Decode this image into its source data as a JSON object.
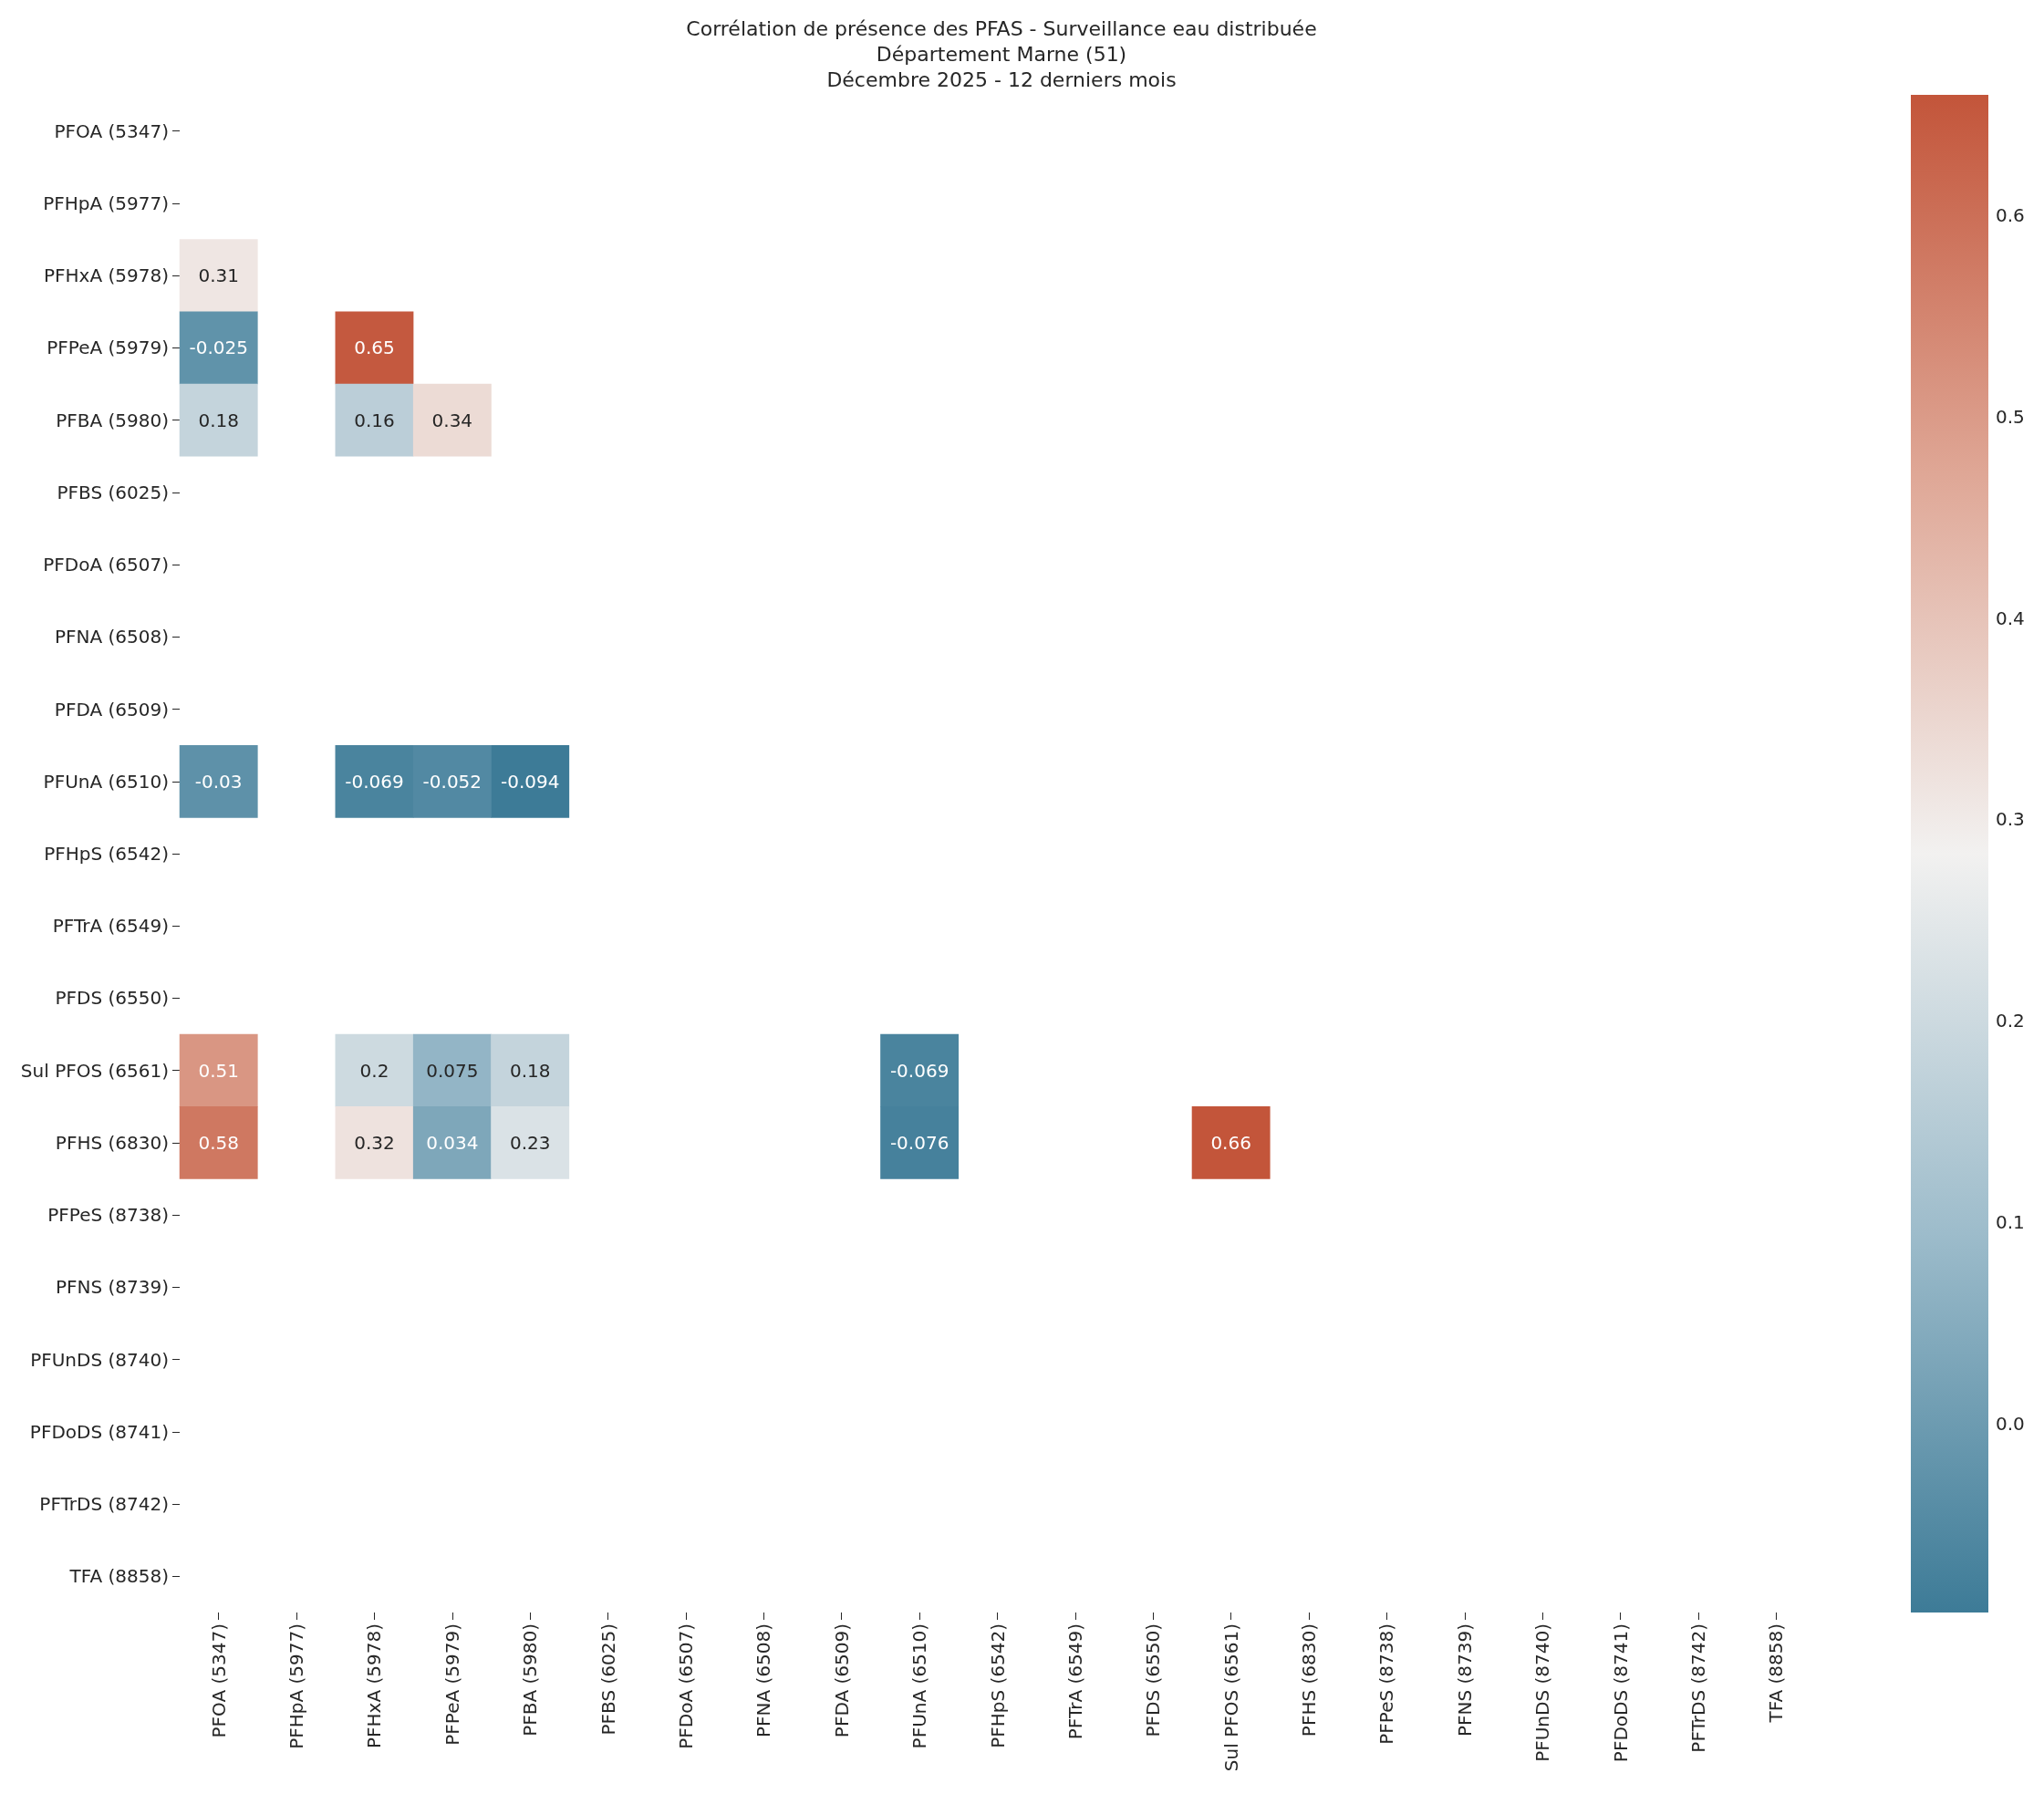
{
  "chart_data": {
    "type": "heatmap",
    "title": "Corrélation de présence des PFAS - Surveillance eau distribuée\nDépartement Marne (51)\nDécembre 2025 - 12 derniers mois",
    "categories": [
      "PFOA (5347)",
      "PFHpA (5977)",
      "PFHxA (5978)",
      "PFPeA (5979)",
      "PFBA (5980)",
      "PFBS (6025)",
      "PFDoA (6507)",
      "PFNA (6508)",
      "PFDA (6509)",
      "PFUnA (6510)",
      "PFHpS (6542)",
      "PFTrA (6549)",
      "PFDS (6550)",
      "Sul PFOS (6561)",
      "PFHS (6830)",
      "PFPeS (8738)",
      "PFNS (8739)",
      "PFUnDS (8740)",
      "PFDoDS (8741)",
      "PFTrDS (8742)",
      "TFA (8858)"
    ],
    "y_categories": [
      "PFOA (5347)",
      "PFHpA (5977)",
      "PFHxA (5978)",
      "PFPeA (5979)",
      "PFBA (5980)",
      "PFBS (6025)",
      "PFDoA (6507)",
      "PFNA (6508)",
      "PFDA (6509)",
      "PFUnA (6510)",
      "PFHpS (6542)",
      "PFTrA (6549)",
      "PFDS (6550)",
      "Sul PFOS (6561)",
      "PFHS (6830)",
      "PFPeS (8738)",
      "PFNS (8739)",
      "PFUnDS (8740)",
      "PFDoDS (8741)",
      "PFTrDS (8742)",
      "TFA (8858)"
    ],
    "cells": [
      [
        null,
        null,
        null,
        null,
        null,
        null,
        null,
        null,
        null,
        null,
        null,
        null,
        null,
        null,
        null,
        null,
        null,
        null,
        null,
        null,
        null
      ],
      [
        null,
        null,
        null,
        null,
        null,
        null,
        null,
        null,
        null,
        null,
        null,
        null,
        null,
        null,
        null,
        null,
        null,
        null,
        null,
        null,
        null
      ],
      [
        0.31,
        null,
        null,
        null,
        null,
        null,
        null,
        null,
        null,
        null,
        null,
        null,
        null,
        null,
        null,
        null,
        null,
        null,
        null,
        null,
        null
      ],
      [
        -0.025,
        null,
        0.65,
        null,
        null,
        null,
        null,
        null,
        null,
        null,
        null,
        null,
        null,
        null,
        null,
        null,
        null,
        null,
        null,
        null,
        null
      ],
      [
        0.18,
        null,
        0.16,
        0.34,
        null,
        null,
        null,
        null,
        null,
        null,
        null,
        null,
        null,
        null,
        null,
        null,
        null,
        null,
        null,
        null,
        null
      ],
      [
        null,
        null,
        null,
        null,
        null,
        null,
        null,
        null,
        null,
        null,
        null,
        null,
        null,
        null,
        null,
        null,
        null,
        null,
        null,
        null,
        null
      ],
      [
        null,
        null,
        null,
        null,
        null,
        null,
        null,
        null,
        null,
        null,
        null,
        null,
        null,
        null,
        null,
        null,
        null,
        null,
        null,
        null,
        null
      ],
      [
        null,
        null,
        null,
        null,
        null,
        null,
        null,
        null,
        null,
        null,
        null,
        null,
        null,
        null,
        null,
        null,
        null,
        null,
        null,
        null,
        null
      ],
      [
        null,
        null,
        null,
        null,
        null,
        null,
        null,
        null,
        null,
        null,
        null,
        null,
        null,
        null,
        null,
        null,
        null,
        null,
        null,
        null,
        null
      ],
      [
        -0.03,
        null,
        -0.069,
        -0.052,
        -0.094,
        null,
        null,
        null,
        null,
        null,
        null,
        null,
        null,
        null,
        null,
        null,
        null,
        null,
        null,
        null,
        null
      ],
      [
        null,
        null,
        null,
        null,
        null,
        null,
        null,
        null,
        null,
        null,
        null,
        null,
        null,
        null,
        null,
        null,
        null,
        null,
        null,
        null,
        null
      ],
      [
        null,
        null,
        null,
        null,
        null,
        null,
        null,
        null,
        null,
        null,
        null,
        null,
        null,
        null,
        null,
        null,
        null,
        null,
        null,
        null,
        null
      ],
      [
        null,
        null,
        null,
        null,
        null,
        null,
        null,
        null,
        null,
        null,
        null,
        null,
        null,
        null,
        null,
        null,
        null,
        null,
        null,
        null,
        null
      ],
      [
        0.51,
        null,
        0.2,
        0.075,
        0.18,
        null,
        null,
        null,
        null,
        -0.069,
        null,
        null,
        null,
        null,
        null,
        null,
        null,
        null,
        null,
        null,
        null
      ],
      [
        0.58,
        null,
        0.32,
        0.034,
        0.23,
        null,
        null,
        null,
        null,
        -0.076,
        null,
        null,
        null,
        0.66,
        null,
        null,
        null,
        null,
        null,
        null,
        null
      ],
      [
        null,
        null,
        null,
        null,
        null,
        null,
        null,
        null,
        null,
        null,
        null,
        null,
        null,
        null,
        null,
        null,
        null,
        null,
        null,
        null,
        null
      ],
      [
        null,
        null,
        null,
        null,
        null,
        null,
        null,
        null,
        null,
        null,
        null,
        null,
        null,
        null,
        null,
        null,
        null,
        null,
        null,
        null,
        null
      ],
      [
        null,
        null,
        null,
        null,
        null,
        null,
        null,
        null,
        null,
        null,
        null,
        null,
        null,
        null,
        null,
        null,
        null,
        null,
        null,
        null,
        null
      ],
      [
        null,
        null,
        null,
        null,
        null,
        null,
        null,
        null,
        null,
        null,
        null,
        null,
        null,
        null,
        null,
        null,
        null,
        null,
        null,
        null,
        null
      ],
      [
        null,
        null,
        null,
        null,
        null,
        null,
        null,
        null,
        null,
        null,
        null,
        null,
        null,
        null,
        null,
        null,
        null,
        null,
        null,
        null,
        null
      ],
      [
        null,
        null,
        null,
        null,
        null,
        null,
        null,
        null,
        null,
        null,
        null,
        null,
        null,
        null,
        null,
        null,
        null,
        null,
        null,
        null,
        null
      ]
    ],
    "clim": [
      -0.094,
      0.66
    ],
    "cticks": [
      {
        "value": 0,
        "label": "0.0"
      },
      {
        "value": 0.1,
        "label": "0.1"
      },
      {
        "value": 0.2,
        "label": "0.2"
      },
      {
        "value": 0.3,
        "label": "0.3"
      },
      {
        "value": 0.4,
        "label": "0.4"
      },
      {
        "value": 0.5,
        "label": "0.5"
      },
      {
        "value": 0.6,
        "label": "0.6"
      }
    ],
    "data_labels": true
  }
}
